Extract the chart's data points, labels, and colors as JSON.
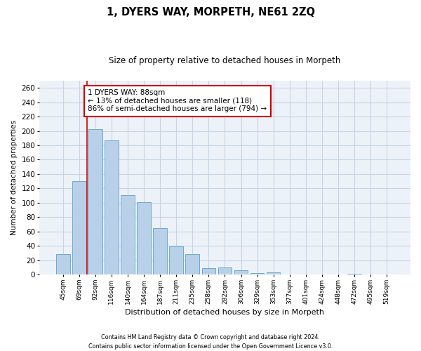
{
  "title": "1, DYERS WAY, MORPETH, NE61 2ZQ",
  "subtitle": "Size of property relative to detached houses in Morpeth",
  "xlabel": "Distribution of detached houses by size in Morpeth",
  "ylabel": "Number of detached properties",
  "categories": [
    "45sqm",
    "69sqm",
    "92sqm",
    "116sqm",
    "140sqm",
    "164sqm",
    "187sqm",
    "211sqm",
    "235sqm",
    "258sqm",
    "282sqm",
    "306sqm",
    "329sqm",
    "353sqm",
    "377sqm",
    "401sqm",
    "424sqm",
    "448sqm",
    "472sqm",
    "495sqm",
    "519sqm"
  ],
  "values": [
    28,
    130,
    203,
    187,
    111,
    101,
    65,
    39,
    28,
    9,
    10,
    6,
    2,
    3,
    0,
    0,
    0,
    0,
    1,
    0,
    0
  ],
  "bar_color": "#b8d0e8",
  "bar_edge_color": "#6aaad4",
  "grid_color": "#c8d4e4",
  "bg_color": "#edf2f9",
  "annotation_text": "1 DYERS WAY: 88sqm\n← 13% of detached houses are smaller (118)\n86% of semi-detached houses are larger (794) →",
  "annotation_box_color": "#ffffff",
  "annotation_box_edge": "#cc0000",
  "vline_color": "#cc0000",
  "vline_x": 1.5,
  "ylim": [
    0,
    270
  ],
  "yticks": [
    0,
    20,
    40,
    60,
    80,
    100,
    120,
    140,
    160,
    180,
    200,
    220,
    240,
    260
  ],
  "footer1": "Contains HM Land Registry data © Crown copyright and database right 2024.",
  "footer2": "Contains public sector information licensed under the Open Government Licence v3.0."
}
